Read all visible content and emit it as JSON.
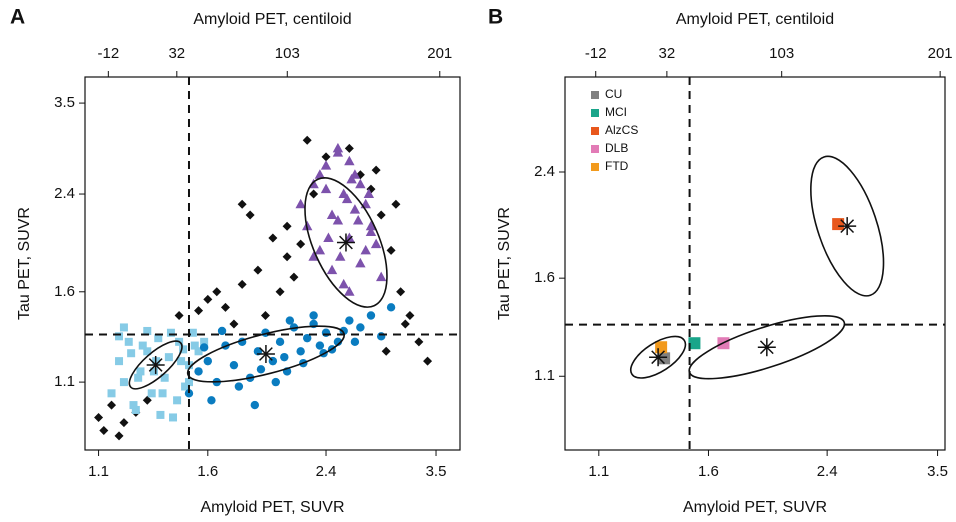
{
  "chart_data": [
    {
      "type": "scatter",
      "panel_label": "A",
      "x2label": "Amyloid PET, centiloid",
      "xlabel": "Amyloid PET, SUVR",
      "ylabel": "Tau PET, SUVR",
      "log_x": true,
      "log_y": true,
      "xlim": [
        1.05,
        3.8
      ],
      "xticks": [
        1.1,
        1.6,
        2.4,
        3.5
      ],
      "ylim": [
        0.83,
        3.9
      ],
      "yticks": [
        1.1,
        1.6,
        2.4,
        3.5
      ],
      "x2lim": [
        -27,
        214
      ],
      "x2ticks": [
        -12,
        32,
        103,
        201
      ],
      "vline": 1.5,
      "hline": 1.34,
      "series": [
        {
          "color": "#111111",
          "marker": "diamond",
          "x": [
            1.1,
            1.12,
            1.15,
            1.18,
            1.2,
            1.25,
            1.3,
            1.45,
            1.6,
            1.7,
            1.75,
            1.8,
            1.85,
            1.9,
            2.0,
            2.1,
            2.2,
            2.3,
            2.4,
            2.6,
            2.8,
            2.9,
            3.0,
            3.1,
            3.2,
            3.3,
            3.4,
            2.1,
            2.15,
            1.95,
            2.05,
            1.8,
            2.7,
            2.85,
            3.05,
            1.55,
            1.65,
            2.25,
            3.15,
            2.95
          ],
          "y": [
            0.95,
            0.9,
            1.0,
            0.88,
            0.93,
            0.97,
            1.02,
            1.45,
            1.55,
            1.5,
            1.4,
            2.3,
            2.2,
            1.75,
            2.0,
            1.85,
            1.95,
            2.4,
            2.8,
            2.9,
            2.45,
            2.2,
            1.9,
            1.6,
            1.45,
            1.3,
            1.2,
            2.1,
            1.7,
            1.45,
            1.6,
            1.65,
            2.6,
            2.65,
            2.3,
            1.48,
            1.6,
            3.0,
            1.4,
            1.25
          ]
        },
        {
          "color": "#86cbe6",
          "marker": "square",
          "x": [
            1.15,
            1.18,
            1.2,
            1.22,
            1.25,
            1.27,
            1.3,
            1.32,
            1.35,
            1.38,
            1.4,
            1.42,
            1.45,
            1.48,
            1.5,
            1.52,
            1.55,
            1.2,
            1.24,
            1.28,
            1.33,
            1.37,
            1.41,
            1.46,
            1.5,
            1.18,
            1.23,
            1.3,
            1.36,
            1.44,
            1.53,
            1.58,
            1.26,
            1.34,
            1.47
          ],
          "y": [
            1.05,
            1.2,
            1.1,
            1.3,
            0.98,
            1.15,
            1.25,
            1.05,
            1.32,
            1.12,
            1.22,
            0.95,
            1.3,
            1.08,
            1.18,
            1.35,
            1.25,
            1.38,
            1.0,
            1.28,
            1.15,
            1.05,
            1.35,
            1.2,
            1.1,
            1.33,
            1.24,
            1.36,
            0.96,
            1.02,
            1.28,
            1.3,
            1.12,
            1.2,
            1.26
          ]
        },
        {
          "color": "#0a7cc0",
          "marker": "circle",
          "x": [
            1.5,
            1.55,
            1.6,
            1.65,
            1.7,
            1.75,
            1.8,
            1.85,
            1.9,
            1.95,
            2.0,
            2.05,
            2.1,
            2.15,
            2.2,
            2.25,
            2.3,
            2.35,
            2.4,
            2.5,
            2.6,
            2.7,
            2.8,
            2.9,
            3.0,
            1.62,
            1.78,
            1.92,
            2.08,
            2.22,
            2.38,
            2.55,
            1.68,
            1.88,
            2.12,
            2.45,
            1.58,
            2.02,
            2.3,
            2.65
          ],
          "y": [
            1.05,
            1.15,
            1.2,
            1.1,
            1.28,
            1.18,
            1.3,
            1.12,
            1.25,
            1.35,
            1.2,
            1.3,
            1.15,
            1.38,
            1.25,
            1.32,
            1.4,
            1.28,
            1.35,
            1.3,
            1.42,
            1.38,
            1.45,
            1.33,
            1.5,
            1.02,
            1.08,
            1.16,
            1.22,
            1.19,
            1.24,
            1.36,
            1.36,
            1.0,
            1.42,
            1.26,
            1.27,
            1.1,
            1.45,
            1.3
          ]
        },
        {
          "color": "#7d52ac",
          "marker": "triangle",
          "x": [
            2.2,
            2.25,
            2.3,
            2.35,
            2.4,
            2.45,
            2.5,
            2.55,
            2.6,
            2.65,
            2.7,
            2.75,
            2.8,
            2.85,
            2.9,
            2.3,
            2.4,
            2.5,
            2.6,
            2.7,
            2.8,
            2.35,
            2.45,
            2.55,
            2.65,
            2.75,
            2.5,
            2.6,
            2.42,
            2.58,
            2.68,
            2.78,
            2.52,
            2.62
          ],
          "y": [
            2.3,
            2.1,
            2.5,
            1.9,
            2.7,
            2.2,
            2.9,
            2.4,
            2.0,
            2.6,
            1.8,
            2.3,
            2.1,
            1.95,
            1.7,
            1.85,
            2.45,
            2.15,
            2.75,
            2.5,
            2.05,
            2.6,
            1.75,
            1.65,
            2.25,
            1.9,
            2.85,
            1.6,
            2.0,
            2.35,
            2.15,
            2.4,
            1.85,
            2.55
          ]
        }
      ],
      "ellipses": [
        {
          "center": [
            1.338,
            1.181
          ],
          "major_end": [
            1.458,
            1.294
          ],
          "minor_end": [
            1.302,
            1.226
          ]
        },
        {
          "center": [
            1.953,
            1.236
          ],
          "major_end": [
            2.553,
            1.344
          ],
          "minor_end": [
            1.919,
            1.338
          ]
        },
        {
          "center": [
            2.57,
            1.963
          ],
          "major_end": [
            2.83,
            1.51
          ],
          "minor_end": [
            2.319,
            1.86
          ]
        }
      ]
    },
    {
      "type": "scatter",
      "panel_label": "B",
      "x2label": "Amyloid PET, centiloid",
      "xlabel": "Amyloid PET, SUVR",
      "ylabel": "Tau PET, SUVR",
      "log_x": true,
      "log_y": true,
      "xlim": [
        0.98,
        3.59
      ],
      "xticks": [
        1.1,
        1.6,
        2.4,
        3.5
      ],
      "ylim": [
        0.83,
        3.45
      ],
      "yticks": [
        1.1,
        1.6,
        2.4
      ],
      "x2lim": [
        -31,
        204
      ],
      "x2ticks": [
        -12,
        32,
        103,
        201
      ],
      "vline": 1.5,
      "hline": 1.34,
      "legend": "upper left",
      "series": [
        {
          "name": "CU",
          "color": "#808080",
          "marker": "square",
          "x": [
            1.375
          ],
          "y": [
            1.178
          ]
        },
        {
          "name": "MCI",
          "color": "#1aa58a",
          "marker": "square",
          "x": [
            1.525
          ],
          "y": [
            1.248
          ]
        },
        {
          "name": "AlzCS",
          "color": "#e8571c",
          "marker": "square",
          "x": [
            2.492
          ],
          "y": [
            1.967
          ]
        },
        {
          "name": "DLB",
          "color": "#e27bb6",
          "marker": "square",
          "x": [
            1.684
          ],
          "y": [
            1.248
          ]
        },
        {
          "name": "FTD",
          "color": "#f29a1d",
          "marker": "square",
          "x": [
            1.361
          ],
          "y": [
            1.229
          ]
        }
      ],
      "ellipses": [
        {
          "center": [
            1.347,
            1.183
          ],
          "major_end": [
            1.473,
            1.262
          ],
          "minor_end": [
            1.311,
            1.238
          ]
        },
        {
          "center": [
            1.953,
            1.229
          ],
          "major_end": [
            2.544,
            1.352
          ],
          "minor_end": [
            1.913,
            1.322
          ]
        },
        {
          "center": [
            2.57,
            1.952
          ],
          "major_end": [
            2.782,
            1.499
          ],
          "minor_end": [
            2.335,
            1.886
          ]
        }
      ]
    }
  ]
}
